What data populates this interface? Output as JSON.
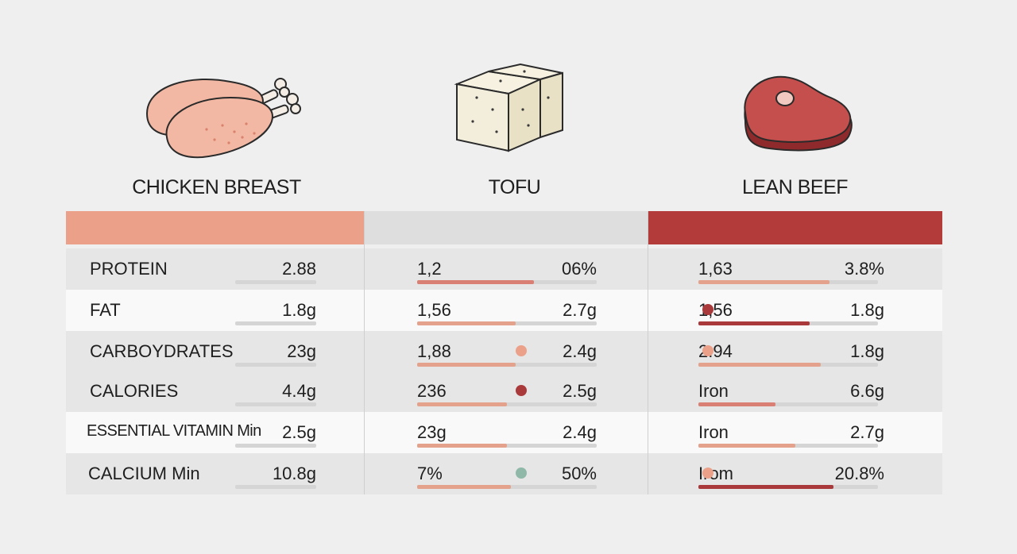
{
  "colors": {
    "background": "#efefef",
    "chicken": "#eba089",
    "tofu": "#dedede",
    "beef": "#b33b3a",
    "track": "#d5d5d5",
    "bar_light": "#e4a28c",
    "bar_mid": "#d97f74",
    "bar_dark": "#a9393a",
    "dot_green": "#8fb8a8"
  },
  "chart_data": {
    "type": "table",
    "columns": [
      {
        "name": "CHICKEN BREAST",
        "icon": "chicken-breast-icon",
        "header_color": "#eba089",
        "rows": [
          {
            "label": "PROTEIN",
            "value": "2.88",
            "bar": 0.0
          },
          {
            "label": "FAT",
            "value": "1.8g",
            "bar": 0.0
          },
          {
            "label": "CARBOYDRATES",
            "value": "23g",
            "bar": 0.0
          },
          {
            "label": "CALORIES",
            "value": "4.4g",
            "bar": 0.0
          },
          {
            "label": "ESSENTIAL VITAMIN Min",
            "value": "2.5g",
            "bar": 0.0
          },
          {
            "label": "CALCIUM Min",
            "value": "10.8g",
            "bar": 0.0
          }
        ]
      },
      {
        "name": "TOFU",
        "icon": "tofu-icon",
        "header_color": "#dedede",
        "rows": [
          {
            "label": "1,2",
            "value": "06%",
            "bar": 0.65,
            "bar_color": "#d97f74"
          },
          {
            "label": "1,56",
            "value": "2.7g",
            "bar": 0.55,
            "bar_color": "#e4a28c"
          },
          {
            "label": "1,88",
            "value": "2.4g",
            "bar": 0.55,
            "bar_color": "#e4a28c",
            "dot": "#eba089"
          },
          {
            "label": "236",
            "value": "2.5g",
            "bar": 0.5,
            "bar_color": "#e4a28c",
            "dot": "#a9393a"
          },
          {
            "label": "23g",
            "value": "2.4g",
            "bar": 0.5,
            "bar_color": "#e4a28c"
          },
          {
            "label": "7%",
            "value": "50%",
            "bar": 0.52,
            "bar_color": "#e4a28c",
            "dot": "#8fb8a8"
          }
        ]
      },
      {
        "name": "LEAN BEEF",
        "icon": "steak-icon",
        "header_color": "#b33b3a",
        "rows": [
          {
            "label": "1,63",
            "value": "3.8%",
            "bar": 0.73,
            "bar_color": "#e4a28c"
          },
          {
            "label": "1,56",
            "value": "1.8g",
            "bar": 0.62,
            "bar_color": "#a9393a",
            "dot": "#a9393a"
          },
          {
            "label": "2.94",
            "value": "1.8g",
            "bar": 0.68,
            "bar_color": "#e4a28c",
            "dot": "#eba089"
          },
          {
            "label": "Iron",
            "value": "6.6g",
            "bar": 0.43,
            "bar_color": "#d97f74"
          },
          {
            "label": "Iron",
            "value": "2.7g",
            "bar": 0.54,
            "bar_color": "#e4a28c"
          },
          {
            "label": "Irom",
            "value": "20.8%",
            "bar": 0.75,
            "bar_color": "#a9393a",
            "dot": "#eba089"
          }
        ]
      }
    ]
  }
}
